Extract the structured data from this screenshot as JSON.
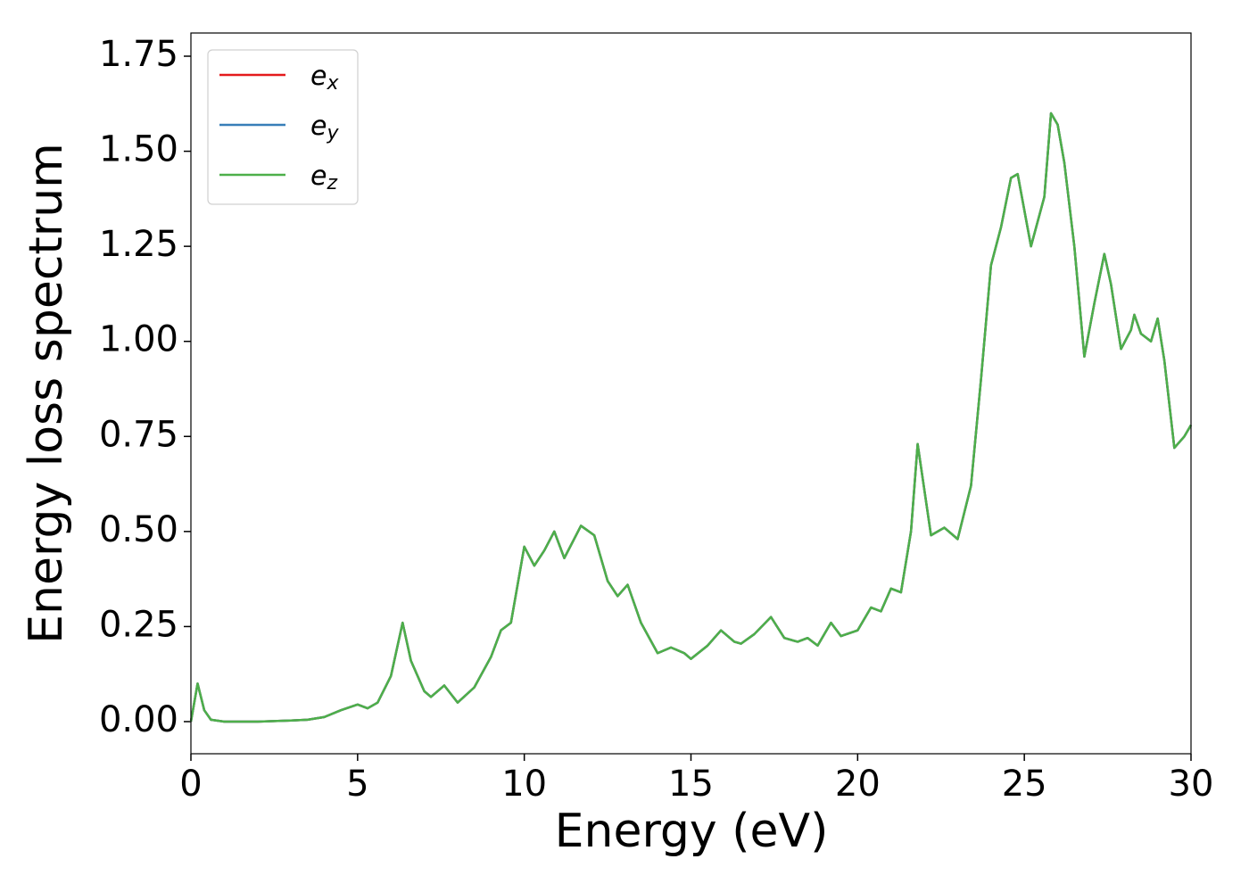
{
  "chart_data": {
    "type": "line",
    "xlabel": "Energy (eV)",
    "ylabel": "Energy loss spectrum",
    "x": [
      0,
      0.2,
      0.4,
      0.6,
      1,
      2,
      3,
      3.5,
      4,
      4.5,
      5,
      5.3,
      5.6,
      6,
      6.35,
      6.6,
      7,
      7.2,
      7.6,
      8,
      8.5,
      9,
      9.3,
      9.6,
      10,
      10.3,
      10.6,
      10.9,
      11.2,
      11.7,
      12.1,
      12.5,
      12.8,
      13.1,
      13.5,
      14,
      14.4,
      14.8,
      15,
      15.5,
      15.9,
      16.3,
      16.5,
      16.9,
      17.4,
      17.8,
      18.2,
      18.5,
      18.8,
      19.2,
      19.5,
      20,
      20.4,
      20.7,
      21,
      21.3,
      21.6,
      21.8,
      22.2,
      22.6,
      23,
      23.4,
      23.7,
      24,
      24.3,
      24.6,
      24.8,
      25.2,
      25.6,
      25.8,
      26,
      26.2,
      26.5,
      26.8,
      27.1,
      27.4,
      27.6,
      27.9,
      28.2,
      28.3,
      28.5,
      28.8,
      29,
      29.2,
      29.5,
      29.8,
      30
    ],
    "series": [
      {
        "name": "ex",
        "color": "#e41a1c",
        "values": [
          0,
          0.1,
          0.03,
          0.005,
          0,
          0,
          0.003,
          0.005,
          0.012,
          0.03,
          0.045,
          0.035,
          0.05,
          0.12,
          0.26,
          0.16,
          0.08,
          0.065,
          0.095,
          0.05,
          0.09,
          0.17,
          0.24,
          0.26,
          0.46,
          0.41,
          0.45,
          0.5,
          0.43,
          0.515,
          0.49,
          0.37,
          0.33,
          0.36,
          0.26,
          0.18,
          0.195,
          0.18,
          0.165,
          0.2,
          0.24,
          0.21,
          0.205,
          0.23,
          0.275,
          0.22,
          0.21,
          0.22,
          0.2,
          0.26,
          0.225,
          0.24,
          0.3,
          0.29,
          0.35,
          0.34,
          0.5,
          0.73,
          0.49,
          0.51,
          0.48,
          0.62,
          0.9,
          1.2,
          1.3,
          1.43,
          1.44,
          1.25,
          1.38,
          1.6,
          1.57,
          1.47,
          1.25,
          0.96,
          1.1,
          1.23,
          1.15,
          0.98,
          1.03,
          1.07,
          1.02,
          1.0,
          1.06,
          0.95,
          0.72,
          0.75,
          0.78
        ]
      },
      {
        "name": "ey",
        "color": "#377eb8",
        "values": [
          0,
          0.1,
          0.03,
          0.005,
          0,
          0,
          0.003,
          0.005,
          0.012,
          0.03,
          0.045,
          0.035,
          0.05,
          0.12,
          0.26,
          0.16,
          0.08,
          0.065,
          0.095,
          0.05,
          0.09,
          0.17,
          0.24,
          0.26,
          0.46,
          0.41,
          0.45,
          0.5,
          0.43,
          0.515,
          0.49,
          0.37,
          0.33,
          0.36,
          0.26,
          0.18,
          0.195,
          0.18,
          0.165,
          0.2,
          0.24,
          0.21,
          0.205,
          0.23,
          0.275,
          0.22,
          0.21,
          0.22,
          0.2,
          0.26,
          0.225,
          0.24,
          0.3,
          0.29,
          0.35,
          0.34,
          0.5,
          0.73,
          0.49,
          0.51,
          0.48,
          0.62,
          0.9,
          1.2,
          1.3,
          1.43,
          1.44,
          1.25,
          1.38,
          1.6,
          1.57,
          1.47,
          1.25,
          0.96,
          1.1,
          1.23,
          1.15,
          0.98,
          1.03,
          1.07,
          1.02,
          1.0,
          1.06,
          0.95,
          0.72,
          0.75,
          0.78
        ]
      },
      {
        "name": "ez",
        "color": "#4daf4a",
        "values": [
          0,
          0.1,
          0.03,
          0.005,
          0,
          0,
          0.003,
          0.005,
          0.012,
          0.03,
          0.045,
          0.035,
          0.05,
          0.12,
          0.26,
          0.16,
          0.08,
          0.065,
          0.095,
          0.05,
          0.09,
          0.17,
          0.24,
          0.26,
          0.46,
          0.41,
          0.45,
          0.5,
          0.43,
          0.515,
          0.49,
          0.37,
          0.33,
          0.36,
          0.26,
          0.18,
          0.195,
          0.18,
          0.165,
          0.2,
          0.24,
          0.21,
          0.205,
          0.23,
          0.275,
          0.22,
          0.21,
          0.22,
          0.2,
          0.26,
          0.225,
          0.24,
          0.3,
          0.29,
          0.35,
          0.34,
          0.5,
          0.73,
          0.49,
          0.51,
          0.48,
          0.62,
          0.9,
          1.2,
          1.3,
          1.43,
          1.44,
          1.25,
          1.38,
          1.6,
          1.57,
          1.47,
          1.25,
          0.96,
          1.1,
          1.23,
          1.15,
          0.98,
          1.03,
          1.07,
          1.02,
          1.0,
          1.06,
          0.95,
          0.72,
          0.75,
          0.78
        ]
      }
    ],
    "xlim": [
      0,
      30
    ],
    "xticks": [
      0,
      5,
      10,
      15,
      20,
      25,
      30
    ],
    "ylim": [
      -0.0845,
      1.811
    ],
    "yticks": [
      {
        "value": 0,
        "label": "0.00"
      },
      {
        "value": 0.25,
        "label": "0.25"
      },
      {
        "value": 0.5,
        "label": "0.50"
      },
      {
        "value": 0.75,
        "label": "0.75"
      },
      {
        "value": 1,
        "label": "1.00"
      },
      {
        "value": 1.25,
        "label": "1.25"
      },
      {
        "value": 1.5,
        "label": "1.50"
      },
      {
        "value": 1.75,
        "label": "1.75"
      }
    ],
    "legend": "upper left"
  }
}
